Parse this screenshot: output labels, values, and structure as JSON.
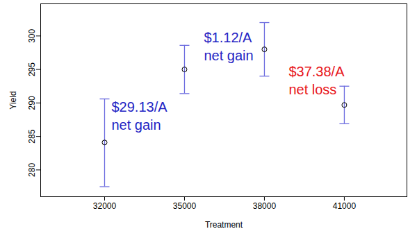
{
  "chart_data": {
    "type": "scatter",
    "x": [
      32000,
      35000,
      38000,
      41000
    ],
    "values": [
      284.1,
      295,
      298,
      289.7
    ],
    "error_bars": {
      "low": [
        277.5,
        291.4,
        294,
        286.9
      ],
      "high": [
        290.6,
        298.6,
        302,
        292.5
      ],
      "color": "#6b6bdf"
    },
    "color": "#000000",
    "marker": "circle",
    "xlabel": "Treatment",
    "ylabel": "Yield",
    "xlim": [
      29600,
      43350
    ],
    "ylim": [
      276,
      304.8
    ],
    "xticks": [
      32000,
      35000,
      38000,
      41000
    ],
    "yticks": [
      280,
      285,
      290,
      295,
      300
    ],
    "grid": false,
    "annotations": [
      {
        "x": 32000,
        "text": "$29.13/A\nnet gain",
        "color": "#2424c4"
      },
      {
        "x": 35000,
        "text": "$1.12/A\nnet gain",
        "color": "#2424c4"
      },
      {
        "x": 41000,
        "text": "$37.38/A\nnet loss",
        "color": "#e8141a"
      }
    ]
  }
}
